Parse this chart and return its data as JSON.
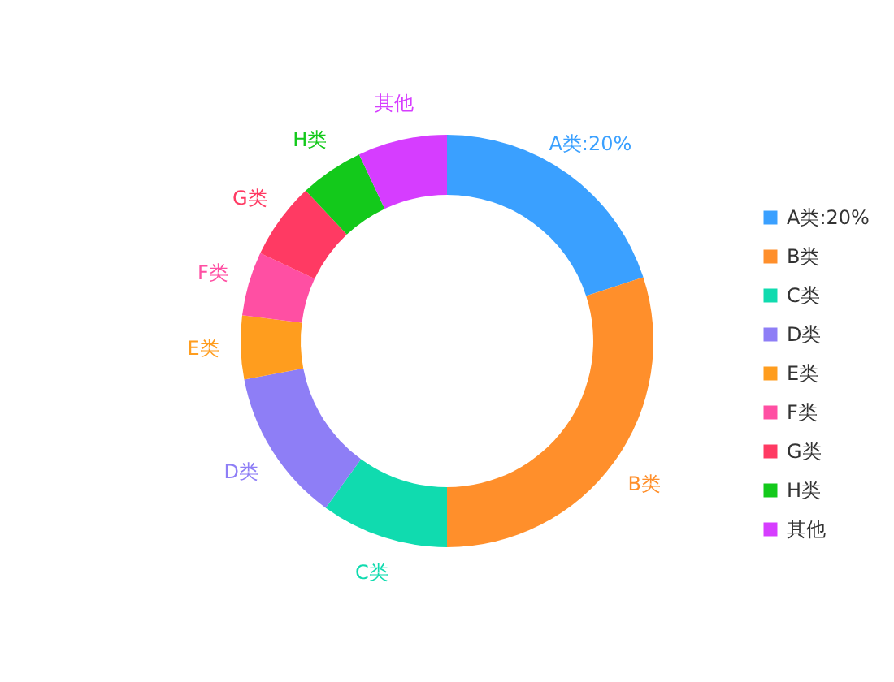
{
  "chart_data": {
    "type": "donut",
    "categories": [
      "A类:20%",
      "B类",
      "C类",
      "D类",
      "E类",
      "F类",
      "G类",
      "H类",
      "其他"
    ],
    "values": [
      20,
      30,
      10,
      12,
      5,
      5,
      6,
      5,
      7
    ],
    "colors": [
      "#3aa0ff",
      "#ff8f2b",
      "#10dbaf",
      "#8e7ef6",
      "#ff9d1e",
      "#ff4fa3",
      "#ff3a63",
      "#13c91b",
      "#d63dff"
    ],
    "legend": "right"
  }
}
